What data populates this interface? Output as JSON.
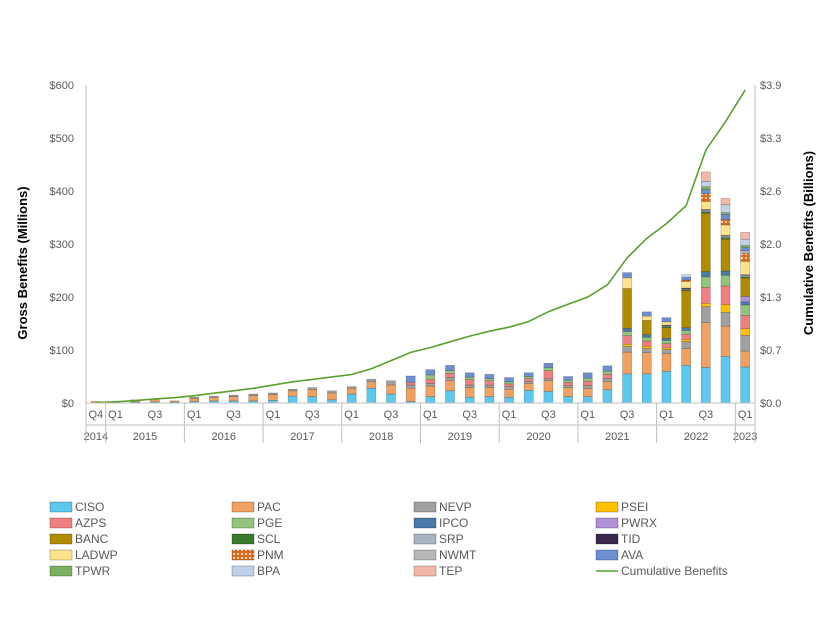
{
  "chart_data": {
    "type": "bar",
    "stacked": true,
    "ylabel": "Gross Benefits (Millions)",
    "y2label": "Cumulative Benefits (Billions)",
    "ylim": [
      0,
      600
    ],
    "y2lim": [
      0,
      3.9
    ],
    "yticks": [
      "$0",
      "$100",
      "$200",
      "$300",
      "$400",
      "$500",
      "$600"
    ],
    "y2ticks": [
      "$0.0",
      "$0.7",
      "$1.3",
      "$2.0",
      "$2.6",
      "$3.3",
      "$3.9"
    ],
    "quarter_labels": [
      {
        "index": 0,
        "label": "Q4"
      },
      {
        "index": 1,
        "label": "Q1"
      },
      {
        "index": 3,
        "label": "Q3"
      },
      {
        "index": 5,
        "label": "Q1"
      },
      {
        "index": 7,
        "label": "Q3"
      },
      {
        "index": 9,
        "label": "Q1"
      },
      {
        "index": 11,
        "label": "Q3"
      },
      {
        "index": 13,
        "label": "Q1"
      },
      {
        "index": 15,
        "label": "Q3"
      },
      {
        "index": 17,
        "label": "Q1"
      },
      {
        "index": 19,
        "label": "Q3"
      },
      {
        "index": 21,
        "label": "Q1"
      },
      {
        "index": 23,
        "label": "Q3"
      },
      {
        "index": 25,
        "label": "Q1"
      },
      {
        "index": 27,
        "label": "Q3"
      },
      {
        "index": 29,
        "label": "Q1"
      },
      {
        "index": 31,
        "label": "Q3"
      },
      {
        "index": 33,
        "label": "Q1"
      }
    ],
    "year_groups": [
      {
        "label": "2014",
        "start": 0,
        "end": 0
      },
      {
        "label": "2015",
        "start": 1,
        "end": 4
      },
      {
        "label": "2016",
        "start": 5,
        "end": 8
      },
      {
        "label": "2017",
        "start": 9,
        "end": 12
      },
      {
        "label": "2018",
        "start": 13,
        "end": 16
      },
      {
        "label": "2019",
        "start": 17,
        "end": 20
      },
      {
        "label": "2020",
        "start": 21,
        "end": 24
      },
      {
        "label": "2021",
        "start": 25,
        "end": 28
      },
      {
        "label": "2022",
        "start": 29,
        "end": 32
      },
      {
        "label": "2023",
        "start": 33,
        "end": 33
      }
    ],
    "series": [
      {
        "name": "CISO",
        "color": "#5cc8f0",
        "values": [
          1,
          1,
          2,
          2,
          2,
          3,
          4,
          4,
          4,
          5,
          13,
          12,
          6,
          17,
          28,
          17,
          3,
          12,
          23,
          11,
          12,
          11,
          24,
          22,
          12,
          12,
          25,
          55,
          55,
          60,
          71,
          67,
          88,
          68
        ]
      },
      {
        "name": "PAC",
        "color": "#f0a060",
        "values": [
          2,
          2,
          4,
          4,
          2,
          6,
          7,
          8,
          10,
          11,
          10,
          13,
          13,
          11,
          12,
          17,
          25,
          20,
          19,
          18,
          17,
          15,
          13,
          20,
          17,
          15,
          15,
          41,
          40,
          33,
          32,
          85,
          57,
          30
        ]
      },
      {
        "name": "NEVP",
        "color": "#a0a0a0",
        "values": [
          0,
          0,
          0,
          0,
          0,
          2,
          2,
          3,
          3,
          3,
          3,
          4,
          4,
          3,
          5,
          8,
          6,
          5,
          6,
          5,
          5,
          5,
          4,
          4,
          4,
          6,
          6,
          11,
          8,
          8,
          13,
          30,
          26,
          30
        ]
      },
      {
        "name": "PSEI",
        "color": "#ffc000",
        "values": [
          0,
          0,
          0,
          0,
          0,
          0,
          0,
          0,
          0,
          0,
          0,
          0,
          0,
          0,
          0,
          0,
          0,
          0,
          0,
          0,
          0,
          0,
          0,
          0,
          0,
          0,
          0,
          4,
          4,
          3,
          4,
          6,
          15,
          12
        ]
      },
      {
        "name": "AZPS",
        "color": "#f08080",
        "values": [
          0,
          0,
          0,
          0,
          0,
          0,
          0,
          0,
          0,
          0,
          0,
          0,
          0,
          0,
          0,
          0,
          5,
          8,
          8,
          10,
          8,
          5,
          5,
          15,
          6,
          8,
          8,
          16,
          10,
          8,
          10,
          30,
          35,
          25
        ]
      },
      {
        "name": "PGE",
        "color": "#92c47c",
        "values": [
          0,
          0,
          0,
          0,
          0,
          0,
          0,
          0,
          0,
          0,
          0,
          0,
          0,
          0,
          0,
          0,
          0,
          8,
          5,
          5,
          4,
          4,
          4,
          6,
          4,
          6,
          6,
          8,
          7,
          6,
          7,
          20,
          20,
          20
        ]
      },
      {
        "name": "IPCO",
        "color": "#4a7aa8",
        "values": [
          0,
          0,
          0,
          0,
          0,
          0,
          0,
          0,
          0,
          0,
          0,
          0,
          0,
          0,
          0,
          0,
          0,
          0,
          0,
          0,
          0,
          0,
          0,
          0,
          0,
          0,
          0,
          6,
          5,
          4,
          5,
          10,
          8,
          6
        ]
      },
      {
        "name": "PWRX",
        "color": "#b090d8",
        "values": [
          0,
          0,
          0,
          0,
          0,
          0,
          0,
          0,
          0,
          0,
          0,
          0,
          0,
          0,
          0,
          0,
          0,
          0,
          0,
          0,
          0,
          0,
          0,
          0,
          0,
          0,
          0,
          0,
          0,
          0,
          0,
          0,
          0,
          10
        ]
      },
      {
        "name": "BANC",
        "color": "#b08b00",
        "values": [
          0,
          0,
          0,
          0,
          0,
          0,
          0,
          0,
          0,
          0,
          0,
          0,
          0,
          0,
          0,
          0,
          0,
          0,
          0,
          0,
          0,
          0,
          0,
          0,
          0,
          0,
          0,
          75,
          27,
          20,
          70,
          110,
          60,
          35
        ]
      },
      {
        "name": "SCL",
        "color": "#3a7a2a",
        "values": [
          0,
          0,
          0,
          0,
          0,
          0,
          0,
          0,
          0,
          0,
          0,
          0,
          0,
          0,
          0,
          0,
          0,
          0,
          0,
          0,
          0,
          0,
          0,
          0,
          0,
          0,
          0,
          0,
          0,
          2,
          2,
          3,
          3,
          2
        ]
      },
      {
        "name": "SRP",
        "color": "#a8b4c4",
        "values": [
          0,
          0,
          0,
          0,
          0,
          0,
          0,
          0,
          0,
          0,
          0,
          0,
          0,
          0,
          0,
          0,
          0,
          0,
          0,
          0,
          0,
          0,
          0,
          0,
          0,
          0,
          0,
          0,
          0,
          2,
          2,
          3,
          3,
          3
        ]
      },
      {
        "name": "TID",
        "color": "#3c2a4e",
        "values": [
          0,
          0,
          0,
          0,
          0,
          0,
          0,
          0,
          0,
          0,
          0,
          0,
          0,
          0,
          0,
          0,
          0,
          0,
          0,
          0,
          0,
          0,
          0,
          0,
          0,
          0,
          0,
          0,
          0,
          1,
          1,
          1,
          1,
          1
        ]
      },
      {
        "name": "LADWP",
        "color": "#ffe38a",
        "values": [
          0,
          0,
          0,
          0,
          0,
          0,
          0,
          0,
          0,
          0,
          0,
          0,
          0,
          0,
          0,
          0,
          0,
          0,
          0,
          0,
          0,
          0,
          0,
          0,
          0,
          0,
          0,
          20,
          8,
          6,
          12,
          15,
          20,
          25
        ]
      },
      {
        "name": "PNM",
        "color": "#e06a1a",
        "pattern": true,
        "values": [
          0,
          0,
          0,
          0,
          0,
          0,
          0,
          0,
          0,
          0,
          0,
          0,
          0,
          0,
          0,
          0,
          0,
          0,
          0,
          0,
          0,
          0,
          0,
          0,
          0,
          0,
          0,
          0,
          0,
          0,
          3,
          15,
          10,
          15
        ]
      },
      {
        "name": "NWMT",
        "color": "#b8b8b8",
        "values": [
          0,
          0,
          0,
          0,
          0,
          0,
          0,
          0,
          0,
          0,
          0,
          0,
          0,
          0,
          0,
          0,
          0,
          0,
          0,
          0,
          0,
          0,
          0,
          0,
          0,
          0,
          0,
          0,
          0,
          0,
          0,
          0,
          0,
          5
        ]
      },
      {
        "name": "AVA",
        "color": "#6b8fd0",
        "values": [
          0,
          0,
          0,
          0,
          0,
          0,
          0,
          0,
          0,
          0,
          0,
          0,
          0,
          0,
          0,
          0,
          12,
          10,
          10,
          8,
          8,
          8,
          7,
          8,
          7,
          10,
          10,
          10,
          8,
          8,
          5,
          8,
          10,
          6
        ]
      },
      {
        "name": "TPWR",
        "color": "#7ab060",
        "values": [
          0,
          0,
          0,
          0,
          0,
          0,
          0,
          0,
          0,
          0,
          0,
          0,
          0,
          0,
          0,
          0,
          0,
          0,
          0,
          0,
          0,
          0,
          0,
          0,
          0,
          0,
          0,
          0,
          0,
          0,
          0,
          5,
          3,
          4
        ]
      },
      {
        "name": "BPA",
        "color": "#c0d0e8",
        "values": [
          0,
          0,
          0,
          0,
          0,
          0,
          0,
          0,
          0,
          0,
          0,
          0,
          0,
          0,
          0,
          0,
          0,
          0,
          0,
          0,
          0,
          0,
          0,
          0,
          0,
          0,
          0,
          0,
          0,
          0,
          5,
          10,
          15,
          12
        ]
      },
      {
        "name": "TEP",
        "color": "#f4b8a8",
        "values": [
          0,
          0,
          0,
          0,
          0,
          0,
          0,
          0,
          0,
          0,
          0,
          0,
          0,
          0,
          0,
          0,
          0,
          0,
          0,
          0,
          0,
          0,
          0,
          0,
          0,
          0,
          0,
          0,
          0,
          0,
          0,
          18,
          12,
          13
        ]
      }
    ],
    "line_series": {
      "name": "Cumulative Benefits",
      "color": "#5aa02c",
      "axis": "right",
      "values": [
        0.006,
        0.015,
        0.03,
        0.05,
        0.065,
        0.09,
        0.12,
        0.15,
        0.18,
        0.22,
        0.26,
        0.29,
        0.32,
        0.35,
        0.42,
        0.52,
        0.62,
        0.68,
        0.75,
        0.82,
        0.88,
        0.93,
        1.0,
        1.12,
        1.21,
        1.3,
        1.45,
        1.78,
        2.02,
        2.2,
        2.42,
        3.1,
        3.45,
        3.84
      ]
    },
    "legend": [
      [
        "CISO",
        "PAC",
        "NEVP",
        "PSEI"
      ],
      [
        "AZPS",
        "PGE",
        "IPCO",
        "PWRX"
      ],
      [
        "BANC",
        "SCL",
        "SRP",
        "TID"
      ],
      [
        "LADWP",
        "PNM",
        "NWMT",
        "AVA"
      ],
      [
        "TPWR",
        "BPA",
        "TEP",
        "Cumulative Benefits"
      ]
    ],
    "legend_position": "bottom"
  }
}
